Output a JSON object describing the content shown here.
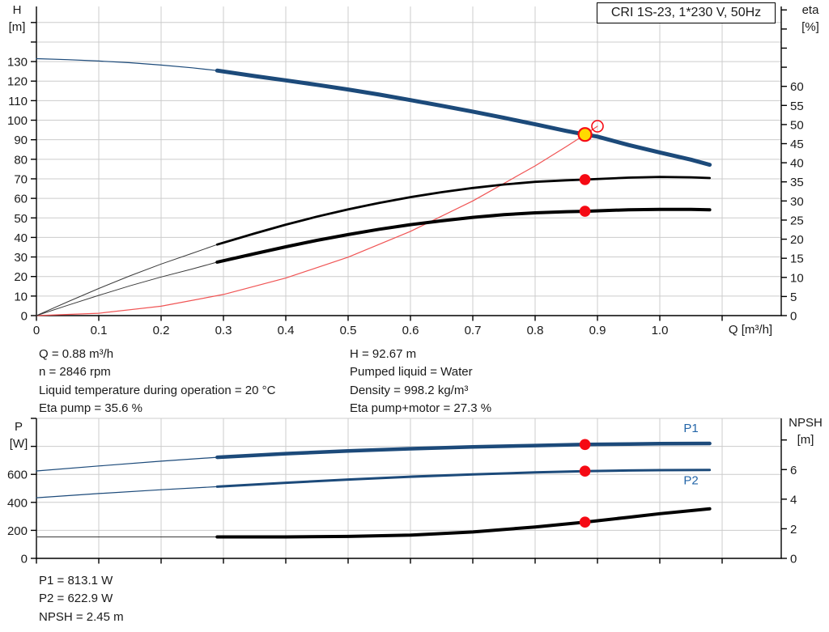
{
  "header": {
    "title": "CRI 1S-23, 1*230 V, 50Hz"
  },
  "colors": {
    "curve_blue": "#1c4a7a",
    "curve_black": "#000000",
    "curve_thin_gray": "#3a3a3a",
    "curve_red": "#f05454",
    "marker_red": "#f50a14",
    "duty_yellow": "#ffd900",
    "label_blue": "#2365a8",
    "grid": "#cccccc",
    "axis": "#000000",
    "text": "#1a1a1a"
  },
  "info": {
    "left": {
      "q": "Q = 0.88 m³/h",
      "n": "n = 2846 rpm",
      "temp": "Liquid temperature during operation = 20 °C",
      "eta_pump": "Eta pump = 35.6 %"
    },
    "right": {
      "h": "H = 92.67 m",
      "liquid": "Pumped liquid = Water",
      "density": "Density = 998.2 kg/m³",
      "eta_total": "Eta pump+motor = 27.3 %"
    },
    "bottom": {
      "p1": "P1 = 813.1 W",
      "p2": "P2 = 622.9 W",
      "npsh": "NPSH = 2.45 m"
    }
  },
  "chart_data": [
    {
      "id": "top",
      "name": "qh-eta-chart",
      "type": "line",
      "x_axis": {
        "title": "Q [m³/h]",
        "tick_values": [
          0,
          0.1,
          0.2,
          0.3,
          0.4,
          0.5,
          0.6,
          0.7,
          0.8,
          0.9,
          1.0,
          1.1
        ],
        "tick_labels": [
          "0",
          "0.1",
          "0.2",
          "0.3",
          "0.4",
          "0.5",
          "0.6",
          "0.7",
          "0.8",
          "0.9",
          "1.0",
          ""
        ]
      },
      "y_left": {
        "axis": "H",
        "title_top": "H",
        "title_bottom": "[m]",
        "tick_values": [
          0,
          10,
          20,
          30,
          40,
          50,
          60,
          70,
          80,
          90,
          100,
          110,
          120,
          130,
          140,
          150
        ],
        "tick_labels": [
          "0",
          "10",
          "20",
          "30",
          "40",
          "50",
          "60",
          "70",
          "80",
          "90",
          "100",
          "110",
          "120",
          "130",
          "",
          ""
        ]
      },
      "y_right": {
        "axis": "eta",
        "title_top": "eta",
        "title_bottom": "[%]",
        "tick_values": [
          0,
          5,
          10,
          15,
          20,
          25,
          30,
          35,
          40,
          45,
          50,
          55,
          60,
          65,
          70,
          75,
          80
        ],
        "tick_labels": [
          "0",
          "5",
          "10",
          "15",
          "20",
          "25",
          "30",
          "35",
          "40",
          "45",
          "50",
          "55",
          "60",
          "",
          "",
          "",
          ""
        ]
      },
      "axes": {
        "x": {
          "min": 0,
          "max": 1.1948
        },
        "H": {
          "min": 0,
          "max": 158.2
        },
        "eta": {
          "min": 0,
          "max": 80.9
        }
      },
      "series": [
        {
          "name": "head-curve-thin",
          "axis": "H",
          "color": "#1c4a7a",
          "width": 1.2,
          "points": [
            [
              0,
              131.5
            ],
            [
              0.05,
              131.0
            ],
            [
              0.1,
              130.3
            ],
            [
              0.15,
              129.4
            ],
            [
              0.2,
              128.2
            ],
            [
              0.25,
              126.8
            ],
            [
              0.29,
              125.4
            ]
          ]
        },
        {
          "name": "head-curve",
          "axis": "H",
          "color": "#1c4a7a",
          "width": 5,
          "points": [
            [
              0.29,
              125.4
            ],
            [
              0.35,
              122.6
            ],
            [
              0.4,
              120.4
            ],
            [
              0.45,
              118.1
            ],
            [
              0.5,
              115.7
            ],
            [
              0.55,
              113.1
            ],
            [
              0.6,
              110.3
            ],
            [
              0.65,
              107.4
            ],
            [
              0.7,
              104.4
            ],
            [
              0.75,
              101.2
            ],
            [
              0.8,
              97.9
            ],
            [
              0.85,
              94.5
            ],
            [
              0.88,
              92.67
            ],
            [
              0.9,
              91.6
            ],
            [
              0.95,
              87.3
            ],
            [
              1.0,
              83.5
            ],
            [
              1.05,
              79.8
            ],
            [
              1.08,
              77.2
            ]
          ]
        },
        {
          "name": "system-curve",
          "axis": "H",
          "color": "#f05454",
          "width": 1.2,
          "points": [
            [
              0,
              0
            ],
            [
              0.1,
              1.2
            ],
            [
              0.2,
              4.8
            ],
            [
              0.3,
              10.8
            ],
            [
              0.4,
              19.2
            ],
            [
              0.5,
              29.9
            ],
            [
              0.6,
              43.1
            ],
            [
              0.7,
              58.7
            ],
            [
              0.8,
              76.6
            ],
            [
              0.85,
              86.5
            ],
            [
              0.88,
              92.67
            ],
            [
              0.9,
              96.9
            ]
          ]
        },
        {
          "name": "eta-pump-curve-thin",
          "axis": "eta",
          "color": "#3a3a3a",
          "width": 1,
          "points": [
            [
              0,
              0
            ],
            [
              0.05,
              3.6
            ],
            [
              0.1,
              7.1
            ],
            [
              0.15,
              10.4
            ],
            [
              0.2,
              13.5
            ],
            [
              0.25,
              16.3
            ],
            [
              0.29,
              18.6
            ]
          ]
        },
        {
          "name": "eta-pump-curve",
          "axis": "eta",
          "color": "#000000",
          "width": 2.8,
          "points": [
            [
              0.29,
              18.6
            ],
            [
              0.35,
              21.5
            ],
            [
              0.4,
              23.8
            ],
            [
              0.45,
              25.9
            ],
            [
              0.5,
              27.8
            ],
            [
              0.55,
              29.5
            ],
            [
              0.6,
              31.0
            ],
            [
              0.65,
              32.3
            ],
            [
              0.7,
              33.4
            ],
            [
              0.75,
              34.3
            ],
            [
              0.8,
              35.0
            ],
            [
              0.85,
              35.4
            ],
            [
              0.88,
              35.6
            ],
            [
              0.95,
              36.1
            ],
            [
              1.0,
              36.3
            ],
            [
              1.05,
              36.2
            ],
            [
              1.08,
              36.0
            ]
          ]
        },
        {
          "name": "eta-pump-motor-curve-thin",
          "axis": "eta",
          "color": "#3a3a3a",
          "width": 1,
          "points": [
            [
              0,
              0
            ],
            [
              0.05,
              2.7
            ],
            [
              0.1,
              5.3
            ],
            [
              0.15,
              7.8
            ],
            [
              0.2,
              10.1
            ],
            [
              0.25,
              12.2
            ],
            [
              0.29,
              14.0
            ]
          ]
        },
        {
          "name": "eta-pump-motor-curve",
          "axis": "eta",
          "color": "#000000",
          "width": 4,
          "points": [
            [
              0.29,
              14.0
            ],
            [
              0.35,
              16.2
            ],
            [
              0.4,
              18.0
            ],
            [
              0.45,
              19.7
            ],
            [
              0.5,
              21.2
            ],
            [
              0.55,
              22.6
            ],
            [
              0.6,
              23.8
            ],
            [
              0.65,
              24.8
            ],
            [
              0.7,
              25.7
            ],
            [
              0.75,
              26.4
            ],
            [
              0.8,
              26.9
            ],
            [
              0.85,
              27.2
            ],
            [
              0.88,
              27.3
            ],
            [
              0.95,
              27.7
            ],
            [
              1.0,
              27.8
            ],
            [
              1.05,
              27.8
            ],
            [
              1.08,
              27.7
            ]
          ]
        }
      ],
      "markers": [
        {
          "name": "duty-point",
          "kind": "duty",
          "axis": "H",
          "q": 0.88,
          "value": 92.67
        },
        {
          "name": "rated-point-open",
          "kind": "open",
          "axis": "H",
          "q": 0.9,
          "value": 96.9
        },
        {
          "name": "eta-pump-point",
          "kind": "dot",
          "axis": "eta",
          "q": 0.88,
          "value": 35.6
        },
        {
          "name": "eta-pump-motor-point",
          "kind": "dot",
          "axis": "eta",
          "q": 0.88,
          "value": 27.3
        }
      ],
      "annotations": []
    },
    {
      "id": "bottom",
      "name": "power-npsh-chart",
      "type": "line",
      "x_axis": {
        "title": "",
        "tick_values": [
          0,
          0.1,
          0.2,
          0.3,
          0.4,
          0.5,
          0.6,
          0.7,
          0.8,
          0.9,
          1.0,
          1.1
        ],
        "tick_labels": [
          "",
          "",
          "",
          "",
          "",
          "",
          "",
          "",
          "",
          "",
          "",
          ""
        ]
      },
      "y_left": {
        "axis": "P",
        "title_top": "P",
        "title_bottom": "[W]",
        "tick_values": [
          0,
          200,
          400,
          600,
          800,
          1000
        ],
        "tick_labels": [
          "0",
          "200",
          "400",
          "600",
          "",
          ""
        ]
      },
      "y_right": {
        "axis": "NPSH",
        "title_top": "NPSH",
        "title_bottom": "[m]",
        "tick_values": [
          0,
          2,
          4,
          6,
          8
        ],
        "tick_labels": [
          "0",
          "2",
          "4",
          "6",
          ""
        ]
      },
      "axes": {
        "x": {
          "min": 0,
          "max": 1.1948
        },
        "P": {
          "min": 0,
          "max": 1000
        },
        "NPSH": {
          "min": 0,
          "max": 9.46
        }
      },
      "series": [
        {
          "name": "p1-curve-thin",
          "axis": "P",
          "color": "#1c4a7a",
          "width": 1.2,
          "points": [
            [
              0,
              624
            ],
            [
              0.1,
              660
            ],
            [
              0.2,
              694
            ],
            [
              0.29,
              722
            ]
          ]
        },
        {
          "name": "p1-curve",
          "axis": "P",
          "color": "#1c4a7a",
          "width": 4.5,
          "points": [
            [
              0.29,
              722
            ],
            [
              0.4,
              748
            ],
            [
              0.5,
              767
            ],
            [
              0.6,
              783
            ],
            [
              0.7,
              796
            ],
            [
              0.8,
              806
            ],
            [
              0.88,
              813.1
            ],
            [
              0.95,
              817
            ],
            [
              1.0,
              819
            ],
            [
              1.08,
              821
            ]
          ]
        },
        {
          "name": "p2-curve-thin",
          "axis": "P",
          "color": "#1c4a7a",
          "width": 1.2,
          "points": [
            [
              0,
              433
            ],
            [
              0.1,
              463
            ],
            [
              0.2,
              490
            ],
            [
              0.29,
              512
            ]
          ]
        },
        {
          "name": "p2-curve",
          "axis": "P",
          "color": "#1c4a7a",
          "width": 3,
          "points": [
            [
              0.29,
              512
            ],
            [
              0.4,
              540
            ],
            [
              0.5,
              563
            ],
            [
              0.6,
              583
            ],
            [
              0.7,
              600
            ],
            [
              0.8,
              614
            ],
            [
              0.88,
              622.9
            ],
            [
              0.95,
              628
            ],
            [
              1.0,
              630
            ],
            [
              1.08,
              632
            ]
          ]
        },
        {
          "name": "npsh-curve-thin",
          "axis": "NPSH",
          "color": "#3a3a3a",
          "width": 1,
          "points": [
            [
              0,
              1.45
            ],
            [
              0.15,
              1.45
            ],
            [
              0.29,
              1.45
            ]
          ]
        },
        {
          "name": "npsh-curve",
          "axis": "NPSH",
          "color": "#000000",
          "width": 4,
          "points": [
            [
              0.29,
              1.45
            ],
            [
              0.4,
              1.45
            ],
            [
              0.5,
              1.48
            ],
            [
              0.6,
              1.57
            ],
            [
              0.7,
              1.78
            ],
            [
              0.8,
              2.12
            ],
            [
              0.88,
              2.45
            ],
            [
              0.95,
              2.78
            ],
            [
              1.0,
              3.02
            ],
            [
              1.08,
              3.35
            ]
          ]
        }
      ],
      "markers": [
        {
          "name": "p1-point",
          "kind": "dot",
          "axis": "P",
          "q": 0.88,
          "value": 813.1
        },
        {
          "name": "p2-point",
          "kind": "dot",
          "axis": "P",
          "q": 0.88,
          "value": 622.9
        },
        {
          "name": "npsh-point",
          "kind": "dot",
          "axis": "NPSH",
          "q": 0.88,
          "value": 2.45
        }
      ],
      "annotations": [
        {
          "text": "P1",
          "axis": "P",
          "q": 1.05,
          "value": 930
        },
        {
          "text": "P2",
          "axis": "P",
          "q": 1.05,
          "value": 558
        }
      ]
    }
  ]
}
